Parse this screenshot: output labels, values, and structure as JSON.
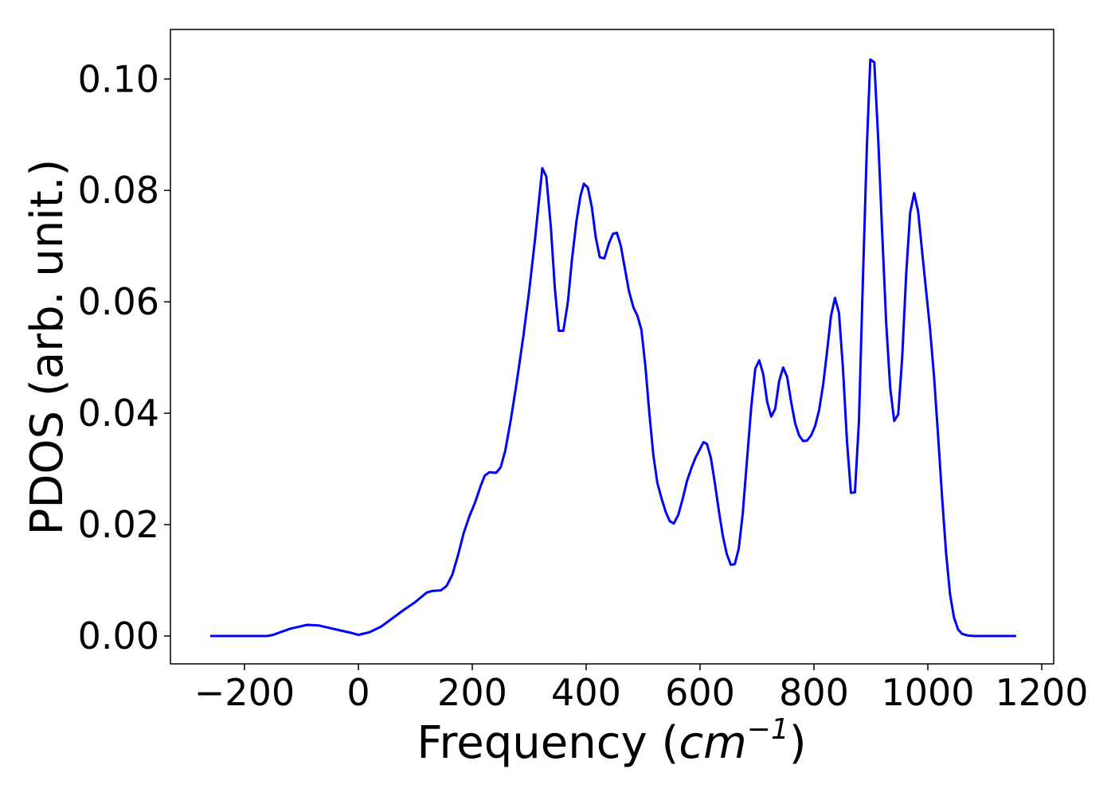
{
  "chart_data": {
    "type": "line",
    "xlabel_parts": [
      "Frequency (",
      "cm",
      "−1",
      ")"
    ],
    "ylabel": "PDOS (arb. unit.)",
    "x": [
      -260,
      -200,
      -160,
      -150,
      -120,
      -90,
      -70,
      -40,
      -10,
      0,
      20,
      40,
      60,
      80,
      100,
      120,
      130,
      145,
      155,
      165,
      175,
      185,
      195,
      205,
      215,
      222,
      230,
      242,
      250,
      258,
      268,
      278,
      290,
      300,
      310,
      318,
      323,
      330,
      338,
      345,
      352,
      360,
      368,
      375,
      383,
      390,
      396,
      403,
      410,
      417,
      424,
      432,
      440,
      447,
      454,
      461,
      468,
      475,
      483,
      490,
      497,
      504,
      511,
      518,
      525,
      533,
      540,
      547,
      554,
      562,
      570,
      577,
      585,
      592,
      600,
      606,
      612,
      619,
      626,
      633,
      640,
      647,
      654,
      661,
      668,
      675,
      682,
      690,
      697,
      704,
      711,
      718,
      725,
      732,
      739,
      746,
      753,
      760,
      767,
      774,
      781,
      788,
      795,
      802,
      809,
      816,
      823,
      830,
      837,
      844,
      851,
      858,
      865,
      872,
      879,
      886,
      893,
      899,
      906,
      913,
      920,
      927,
      934,
      941,
      948,
      955,
      962,
      969,
      976,
      983,
      990,
      997,
      1004,
      1011,
      1018,
      1025,
      1032,
      1039,
      1046,
      1053,
      1060,
      1070,
      1080,
      1155
    ],
    "values": [
      0,
      0,
      0,
      0.0002,
      0.0013,
      0.002,
      0.0019,
      0.0012,
      0.0005,
      0.0002,
      0.0007,
      0.0017,
      0.0032,
      0.0047,
      0.0061,
      0.0078,
      0.0081,
      0.0082,
      0.009,
      0.011,
      0.0145,
      0.0185,
      0.0215,
      0.024,
      0.027,
      0.0288,
      0.0294,
      0.0293,
      0.0303,
      0.0333,
      0.039,
      0.0455,
      0.054,
      0.062,
      0.071,
      0.079,
      0.084,
      0.0825,
      0.0735,
      0.0625,
      0.0548,
      0.0548,
      0.06,
      0.0675,
      0.0745,
      0.079,
      0.0812,
      0.0805,
      0.077,
      0.0715,
      0.068,
      0.0678,
      0.0705,
      0.0722,
      0.0724,
      0.07,
      0.066,
      0.062,
      0.059,
      0.0575,
      0.055,
      0.0485,
      0.04,
      0.0325,
      0.0275,
      0.0245,
      0.0222,
      0.0206,
      0.0202,
      0.0218,
      0.0248,
      0.0278,
      0.0302,
      0.032,
      0.0336,
      0.0348,
      0.0345,
      0.032,
      0.0275,
      0.0225,
      0.018,
      0.0147,
      0.0128,
      0.0129,
      0.0157,
      0.022,
      0.031,
      0.0412,
      0.048,
      0.0495,
      0.047,
      0.042,
      0.0394,
      0.0408,
      0.0458,
      0.0482,
      0.0465,
      0.042,
      0.0382,
      0.036,
      0.035,
      0.0351,
      0.036,
      0.0377,
      0.0405,
      0.045,
      0.051,
      0.0575,
      0.0607,
      0.058,
      0.048,
      0.035,
      0.0257,
      0.0258,
      0.0385,
      0.064,
      0.088,
      0.1035,
      0.103,
      0.089,
      0.072,
      0.056,
      0.0445,
      0.0386,
      0.0398,
      0.05,
      0.065,
      0.076,
      0.0795,
      0.0762,
      0.069,
      0.062,
      0.055,
      0.0465,
      0.036,
      0.025,
      0.015,
      0.0075,
      0.0033,
      0.0012,
      0.0004,
      0.0001,
      0,
      0
    ],
    "color": "#0000ff",
    "xlim": [
      -330,
      1221
    ],
    "ylim": [
      -0.005,
      0.1089
    ],
    "xticks": [
      {
        "value": -200,
        "label": "−200"
      },
      0,
      200,
      400,
      600,
      800,
      1000,
      1200
    ],
    "yticks": [
      {
        "value": 0,
        "label": "0.00"
      },
      {
        "value": 0.02,
        "label": "0.02"
      },
      {
        "value": 0.04,
        "label": "0.04"
      },
      {
        "value": 0.06,
        "label": "0.06"
      },
      {
        "value": 0.08,
        "label": "0.08"
      },
      {
        "value": 0.1,
        "label": "0.10"
      }
    ],
    "grid": false
  }
}
